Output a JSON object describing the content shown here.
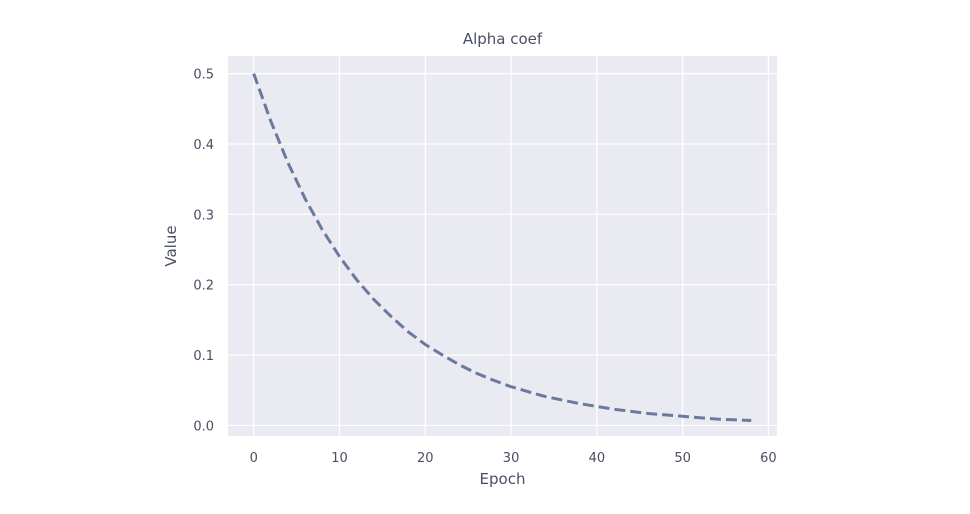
{
  "chart_data": {
    "type": "line",
    "title": "Alpha coef",
    "xlabel": "Epoch",
    "ylabel": "Value",
    "xlim": [
      -3,
      61
    ],
    "ylim": [
      -0.015,
      0.525
    ],
    "xticks": [
      0,
      10,
      20,
      30,
      40,
      50,
      60
    ],
    "xtick_labels": [
      "0",
      "10",
      "20",
      "30",
      "40",
      "50",
      "60"
    ],
    "yticks": [
      0.0,
      0.1,
      0.2,
      0.3,
      0.4,
      0.5
    ],
    "ytick_labels": [
      "0.0",
      "0.1",
      "0.2",
      "0.3",
      "0.4",
      "0.5"
    ],
    "grid": true,
    "background": "#eaeaf2",
    "series": [
      {
        "line_style": "dashed",
        "color": "#6a7a9f",
        "x": [
          0,
          2,
          4,
          6,
          8,
          10,
          12,
          14,
          16,
          18,
          20,
          22,
          24,
          26,
          28,
          30,
          32,
          34,
          36,
          38,
          40,
          42,
          44,
          46,
          48,
          50,
          52,
          54,
          56,
          58
        ],
        "y": [
          0.5,
          0.432,
          0.373,
          0.322,
          0.278,
          0.24,
          0.207,
          0.179,
          0.155,
          0.133,
          0.115,
          0.1,
          0.086,
          0.074,
          0.064,
          0.055,
          0.048,
          0.041,
          0.036,
          0.031,
          0.027,
          0.023,
          0.02,
          0.017,
          0.015,
          0.013,
          0.011,
          0.009,
          0.008,
          0.007
        ]
      }
    ]
  }
}
